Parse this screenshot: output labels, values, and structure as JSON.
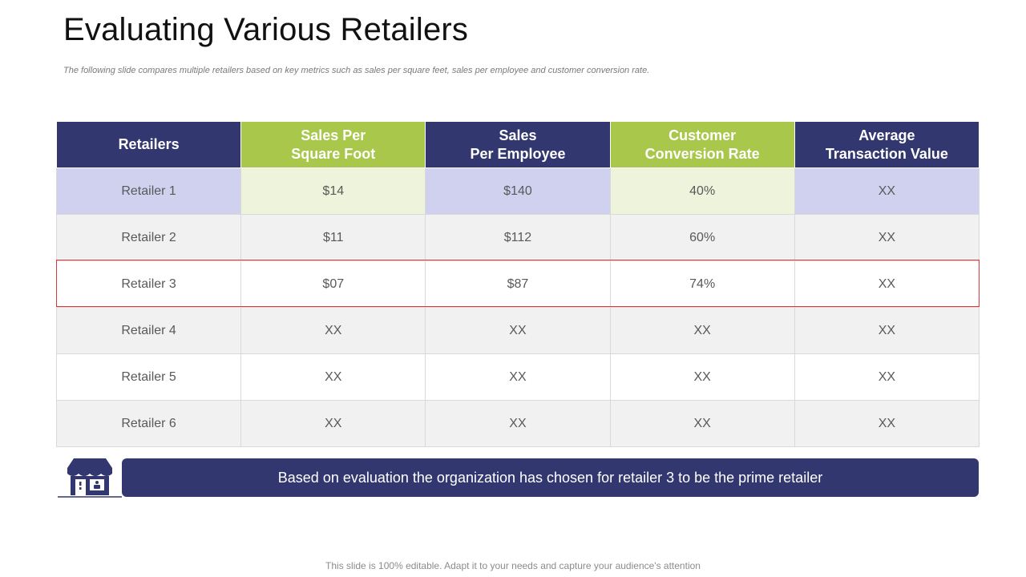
{
  "slide": {
    "title": "Evaluating Various Retailers",
    "subtitle": "The following slide compares multiple retailers based on key metrics such as sales per square feet, sales per employee and customer conversion rate."
  },
  "table": {
    "headers": [
      [
        "Retailers"
      ],
      [
        "Sales Per",
        "Square Foot"
      ],
      [
        "Sales",
        "Per Employee"
      ],
      [
        "Customer",
        "Conversion Rate"
      ],
      [
        "Average",
        "Transaction Value"
      ]
    ],
    "rows": [
      [
        "Retailer 1",
        "$14",
        "$140",
        "40%",
        "XX"
      ],
      [
        "Retailer 2",
        "$11",
        "$112",
        "60%",
        "XX"
      ],
      [
        "Retailer 3",
        "$07",
        "$87",
        "74%",
        "XX"
      ],
      [
        "Retailer 4",
        "XX",
        "XX",
        "XX",
        "XX"
      ],
      [
        "Retailer 5",
        "XX",
        "XX",
        "XX",
        "XX"
      ],
      [
        "Retailer 6",
        "XX",
        "XX",
        "XX",
        "XX"
      ]
    ],
    "highlighted_row": "Retailer 3"
  },
  "conclusion": {
    "icon": "store-icon",
    "text": "Based on evaluation the organization has chosen for retailer 3 to be the prime retailer"
  },
  "footer": "This slide is 100% editable. Adapt it to your needs and capture your audience's attention",
  "colors": {
    "navy": "#333770",
    "green": "#a9c84b",
    "highlight_border": "#d9383a"
  }
}
